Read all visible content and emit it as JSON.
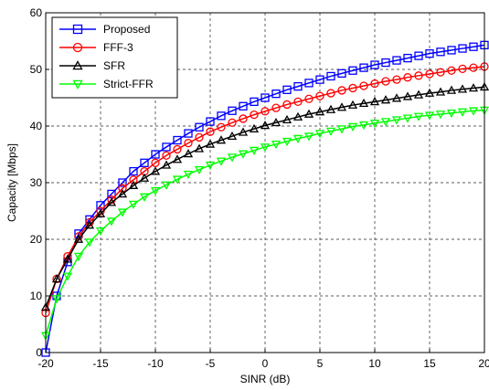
{
  "chart_data": {
    "type": "line",
    "title": "",
    "xlabel": "SINR (dB)",
    "ylabel": "Capacity [Mbps]",
    "xlim": [
      -20,
      20
    ],
    "ylim": [
      0,
      60
    ],
    "xticks": [
      -20,
      -15,
      -10,
      -5,
      0,
      5,
      10,
      15,
      20
    ],
    "yticks": [
      0,
      10,
      20,
      30,
      40,
      50,
      60
    ],
    "grid": true,
    "legend_position": "top-left",
    "x": [
      -20,
      -19,
      -18,
      -17,
      -16,
      -15,
      -14,
      -13,
      -12,
      -11,
      -10,
      -9,
      -8,
      -7,
      -6,
      -5,
      -4,
      -3,
      -2,
      -1,
      0,
      1,
      2,
      3,
      4,
      5,
      6,
      7,
      8,
      9,
      10,
      11,
      12,
      13,
      14,
      15,
      16,
      17,
      18,
      19,
      20
    ],
    "series": [
      {
        "name": "Proposed",
        "color": "#0000ff",
        "marker": "square",
        "values": [
          0,
          10,
          16,
          21,
          23.5,
          26,
          28,
          30,
          32,
          33.5,
          35,
          36.3,
          37.5,
          38.7,
          39.8,
          40.8,
          41.8,
          42.7,
          43.5,
          44.3,
          45,
          45.7,
          46.4,
          47.0,
          47.6,
          48.2,
          48.8,
          49.3,
          49.8,
          50.3,
          50.8,
          51.2,
          51.6,
          52.0,
          52.4,
          52.8,
          53.1,
          53.4,
          53.7,
          54.0,
          54.3
        ]
      },
      {
        "name": "FFF-3",
        "color": "#ff0000",
        "marker": "circle",
        "values": [
          7,
          13,
          17,
          20.5,
          23,
          25,
          27,
          29,
          30.5,
          32,
          33.5,
          34.8,
          35.9,
          37,
          38,
          39,
          39.8,
          40.6,
          41.3,
          42,
          42.6,
          43.2,
          43.8,
          44.3,
          44.8,
          45.3,
          45.8,
          46.3,
          46.7,
          47.1,
          47.5,
          47.9,
          48.2,
          48.6,
          48.9,
          49.2,
          49.5,
          49.8,
          50.1,
          50.3,
          50.5
        ]
      },
      {
        "name": "SFR",
        "color": "#000000",
        "marker": "triangle-up",
        "values": [
          8,
          13,
          16.5,
          20,
          22.5,
          24.5,
          26.5,
          28,
          29.5,
          30.8,
          32,
          33.1,
          34.1,
          35.1,
          36,
          36.8,
          37.5,
          38.2,
          38.9,
          39.5,
          40.1,
          40.6,
          41.1,
          41.6,
          42.1,
          42.5,
          42.9,
          43.3,
          43.7,
          44.0,
          44.3,
          44.6,
          44.9,
          45.2,
          45.5,
          45.8,
          46.0,
          46.3,
          46.5,
          46.7,
          46.9
        ]
      },
      {
        "name": "Strict-FFR",
        "color": "#00ff00",
        "marker": "triangle-down",
        "values": [
          3,
          9.5,
          13.5,
          17,
          19.5,
          21.5,
          23.2,
          24.8,
          26.2,
          27.5,
          28.6,
          29.6,
          30.6,
          31.5,
          32.3,
          33.1,
          33.8,
          34.5,
          35.1,
          35.7,
          36.3,
          36.8,
          37.3,
          37.8,
          38.2,
          38.7,
          39.1,
          39.5,
          39.9,
          40.2,
          40.5,
          40.8,
          41.1,
          41.4,
          41.7,
          41.9,
          42.1,
          42.3,
          42.5,
          42.7,
          42.8
        ]
      }
    ]
  }
}
